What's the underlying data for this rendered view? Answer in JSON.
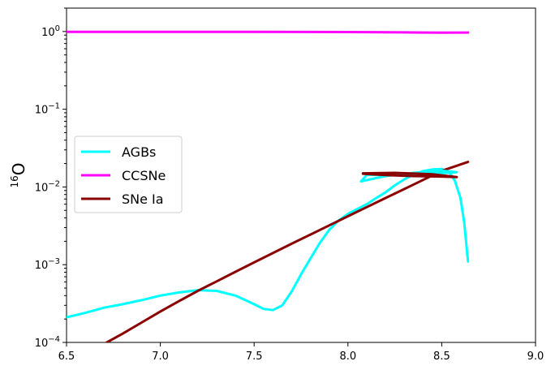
{
  "chart_data": {
    "type": "line",
    "title": "",
    "xlabel": "",
    "ylabel": {
      "sup": "16",
      "main": "O"
    },
    "xlim": [
      6.5,
      9.0
    ],
    "ylim": [
      0.0001,
      2.0
    ],
    "yscale": "log",
    "grid": false,
    "legend_position": "center-left",
    "x_ticks": [
      {
        "value": 6.5,
        "label": "6.5"
      },
      {
        "value": 7.0,
        "label": "7.0"
      },
      {
        "value": 7.5,
        "label": "7.5"
      },
      {
        "value": 8.0,
        "label": "8.0"
      },
      {
        "value": 8.5,
        "label": "8.5"
      },
      {
        "value": 9.0,
        "label": "9.0"
      }
    ],
    "y_ticks": [
      {
        "value": 0.0001,
        "base": "10",
        "exp": "−4"
      },
      {
        "value": 0.001,
        "base": "10",
        "exp": "−3"
      },
      {
        "value": 0.01,
        "base": "10",
        "exp": "−2"
      },
      {
        "value": 0.1,
        "base": "10",
        "exp": "−1"
      },
      {
        "value": 1,
        "base": "10",
        "exp": "0"
      }
    ],
    "series": [
      {
        "name": "AGBs",
        "color": "#00ffff",
        "points": [
          [
            6.5,
            0.00021
          ],
          [
            6.6,
            0.00024
          ],
          [
            6.7,
            0.00028
          ],
          [
            6.8,
            0.00031
          ],
          [
            6.9,
            0.00035
          ],
          [
            7.0,
            0.0004
          ],
          [
            7.1,
            0.00044
          ],
          [
            7.2,
            0.00047
          ],
          [
            7.3,
            0.00046
          ],
          [
            7.4,
            0.0004
          ],
          [
            7.5,
            0.00031
          ],
          [
            7.55,
            0.00027
          ],
          [
            7.6,
            0.00026
          ],
          [
            7.65,
            0.0003
          ],
          [
            7.7,
            0.00045
          ],
          [
            7.75,
            0.00075
          ],
          [
            7.8,
            0.0012
          ],
          [
            7.85,
            0.0019
          ],
          [
            7.9,
            0.0028
          ],
          [
            7.95,
            0.0037
          ],
          [
            8.0,
            0.0045
          ],
          [
            8.05,
            0.0052
          ],
          [
            8.1,
            0.006
          ],
          [
            8.15,
            0.0072
          ],
          [
            8.2,
            0.0085
          ],
          [
            8.25,
            0.0105
          ],
          [
            8.3,
            0.0125
          ],
          [
            8.35,
            0.0145
          ],
          [
            8.4,
            0.016
          ],
          [
            8.45,
            0.0168
          ],
          [
            8.5,
            0.017
          ],
          [
            8.54,
            0.0155
          ],
          [
            8.57,
            0.012
          ],
          [
            8.6,
            0.0072
          ],
          [
            8.62,
            0.0035
          ],
          [
            8.64,
            0.0011
          ]
        ]
      },
      {
        "name": "CCSNe",
        "color": "#ff00ff",
        "points": [
          [
            6.5,
            0.99
          ],
          [
            7.0,
            0.99
          ],
          [
            7.5,
            0.99
          ],
          [
            8.0,
            0.985
          ],
          [
            8.3,
            0.975
          ],
          [
            8.5,
            0.965
          ],
          [
            8.64,
            0.97
          ]
        ]
      },
      {
        "name": "SNe Ia",
        "color": "#8b0000",
        "points": [
          [
            6.68,
            9e-05
          ],
          [
            6.8,
            0.00013
          ],
          [
            6.9,
            0.00018
          ],
          [
            7.0,
            0.00025
          ],
          [
            7.1,
            0.00034
          ],
          [
            7.2,
            0.00046
          ],
          [
            7.3,
            0.00061
          ],
          [
            7.4,
            0.00081
          ],
          [
            7.5,
            0.00107
          ],
          [
            7.6,
            0.00141
          ],
          [
            7.7,
            0.00186
          ],
          [
            7.8,
            0.00244
          ],
          [
            7.9,
            0.0032
          ],
          [
            8.0,
            0.0042
          ],
          [
            8.1,
            0.0055
          ],
          [
            8.2,
            0.0072
          ],
          [
            8.3,
            0.0094
          ],
          [
            8.4,
            0.0123
          ],
          [
            8.5,
            0.0161
          ],
          [
            8.64,
            0.021
          ]
        ]
      }
    ],
    "loop_overlay": [
      {
        "color": "#00ffff",
        "points": [
          [
            8.07,
            0.0118
          ],
          [
            8.2,
            0.0138
          ],
          [
            8.35,
            0.0152
          ],
          [
            8.5,
            0.0162
          ],
          [
            8.58,
            0.0155
          ],
          [
            8.45,
            0.0148
          ],
          [
            8.25,
            0.0146
          ],
          [
            8.1,
            0.0142
          ]
        ]
      },
      {
        "color": "#8b0000",
        "points": [
          [
            8.08,
            0.0148
          ],
          [
            8.2,
            0.0142
          ],
          [
            8.35,
            0.0138
          ],
          [
            8.5,
            0.0136
          ],
          [
            8.58,
            0.0134
          ],
          [
            8.45,
            0.0146
          ],
          [
            8.25,
            0.0152
          ],
          [
            8.08,
            0.015
          ]
        ]
      }
    ]
  }
}
